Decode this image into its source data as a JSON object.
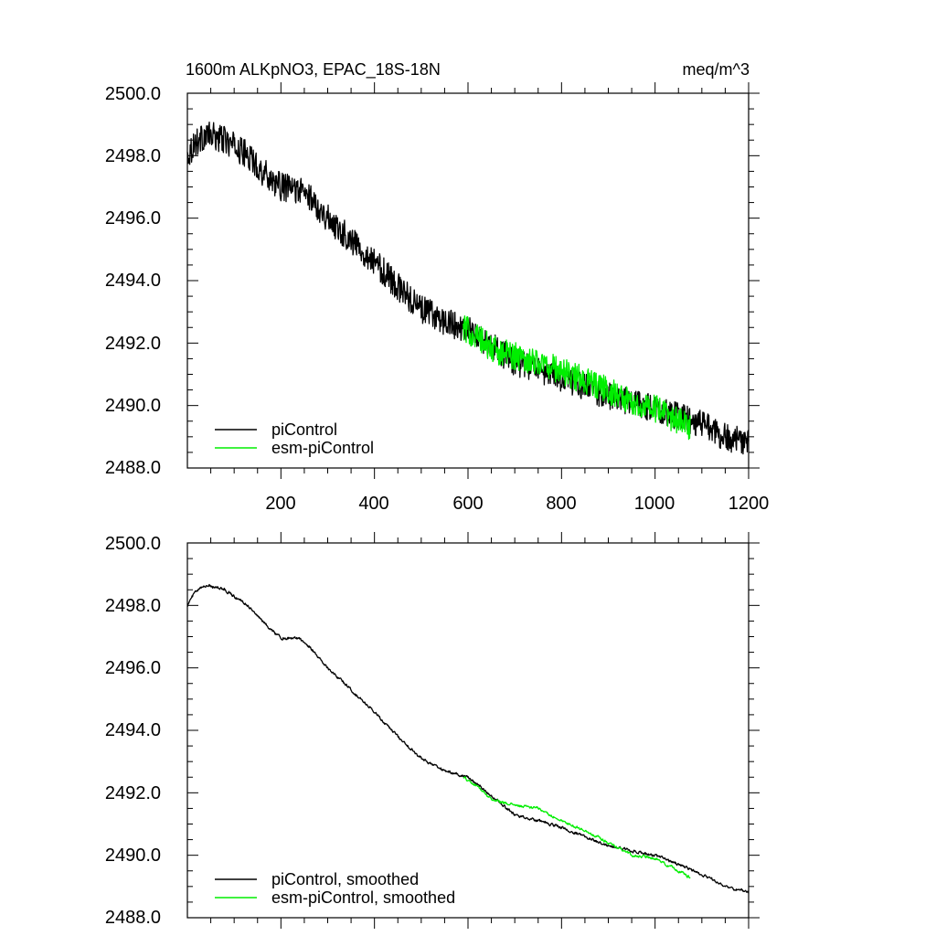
{
  "chart_data": [
    {
      "type": "line",
      "title": "1600m ALKpNO3, EPAC_18S-18N",
      "units_label": "meq/m^3",
      "xlim": [
        0,
        1200
      ],
      "ylim": [
        2488.0,
        2500.0
      ],
      "x_tick_labels": [
        "200",
        "400",
        "600",
        "800",
        "1000",
        "1200"
      ],
      "y_tick_labels": [
        "2488.0",
        "2490.0",
        "2492.0",
        "2494.0",
        "2496.0",
        "2498.0",
        "2500.0"
      ],
      "legend_position": "bottom-left",
      "series": [
        {
          "name": "piControl",
          "color": "#000000",
          "noise": 0.45,
          "x": [
            0,
            15,
            40,
            60,
            80,
            100,
            130,
            160,
            200,
            240,
            260,
            300,
            350,
            400,
            450,
            500,
            550,
            600,
            650,
            700,
            800,
            900,
            1000,
            1100,
            1150,
            1200
          ],
          "y": [
            2498.0,
            2498.4,
            2498.65,
            2498.6,
            2498.5,
            2498.3,
            2498.0,
            2497.5,
            2497.0,
            2496.9,
            2496.7,
            2496.0,
            2495.3,
            2494.6,
            2493.8,
            2493.1,
            2492.7,
            2492.4,
            2491.9,
            2491.4,
            2490.9,
            2490.3,
            2489.9,
            2489.4,
            2489.0,
            2488.8
          ]
        },
        {
          "name": "esm-piControl",
          "color": "#00ee00",
          "noise": 0.45,
          "x": [
            590,
            620,
            650,
            700,
            750,
            800,
            850,
            900,
            950,
            1000,
            1050,
            1075
          ],
          "y": [
            2492.5,
            2492.2,
            2491.8,
            2491.6,
            2491.4,
            2491.1,
            2490.8,
            2490.5,
            2490.1,
            2489.9,
            2489.5,
            2489.3
          ]
        }
      ]
    },
    {
      "type": "line",
      "title": "",
      "xlim": [
        0,
        1200
      ],
      "ylim": [
        2488.0,
        2500.0
      ],
      "y_tick_labels": [
        "2488.0",
        "2490.0",
        "2492.0",
        "2494.0",
        "2496.0",
        "2498.0",
        "2500.0"
      ],
      "legend_position": "bottom-left",
      "series": [
        {
          "name": "piControl, smoothed",
          "color": "#000000",
          "noise": 0.09,
          "x": [
            0,
            15,
            40,
            60,
            80,
            100,
            130,
            160,
            200,
            240,
            260,
            300,
            350,
            400,
            450,
            500,
            550,
            600,
            650,
            700,
            800,
            900,
            1000,
            1100,
            1150,
            1200
          ],
          "y": [
            2498.0,
            2498.4,
            2498.65,
            2498.6,
            2498.5,
            2498.3,
            2498.0,
            2497.5,
            2496.95,
            2496.95,
            2496.7,
            2496.0,
            2495.3,
            2494.6,
            2493.8,
            2493.1,
            2492.7,
            2492.5,
            2491.9,
            2491.3,
            2490.9,
            2490.3,
            2490.0,
            2489.4,
            2489.0,
            2488.8
          ]
        },
        {
          "name": "esm-piControl, smoothed",
          "color": "#00ee00",
          "noise": 0.09,
          "x": [
            590,
            620,
            650,
            700,
            750,
            800,
            850,
            900,
            950,
            1000,
            1050,
            1075
          ],
          "y": [
            2492.5,
            2492.2,
            2491.8,
            2491.6,
            2491.5,
            2491.1,
            2490.8,
            2490.4,
            2490.0,
            2489.9,
            2489.5,
            2489.3
          ]
        }
      ]
    }
  ]
}
